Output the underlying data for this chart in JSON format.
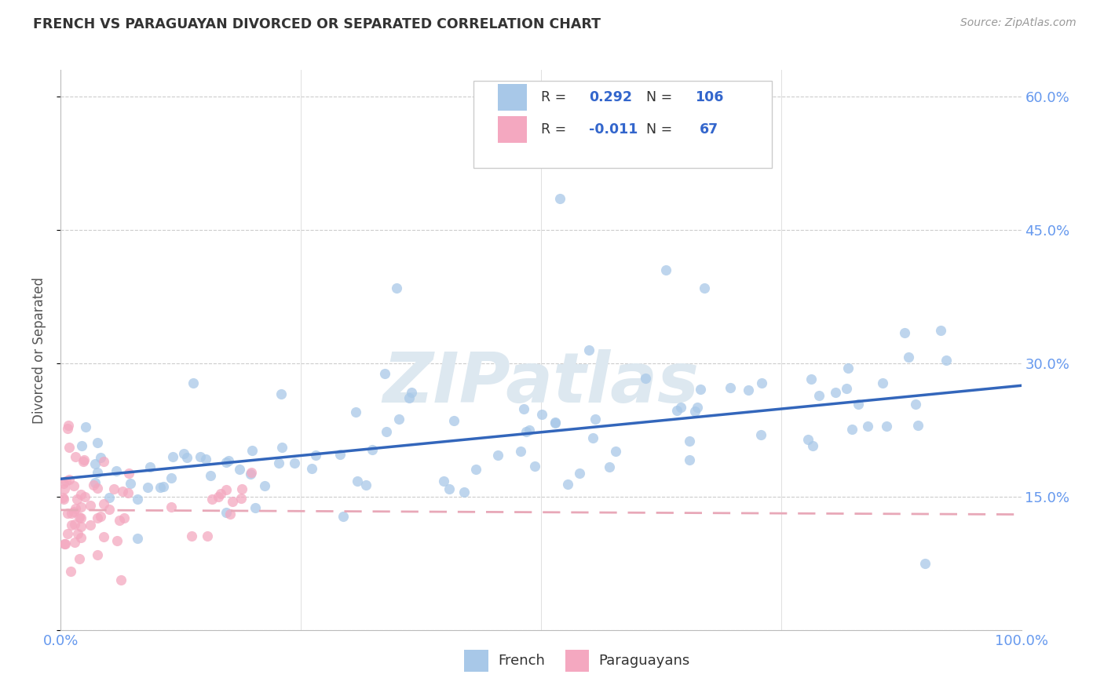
{
  "title": "FRENCH VS PARAGUAYAN DIVORCED OR SEPARATED CORRELATION CHART",
  "source": "Source: ZipAtlas.com",
  "ylabel": "Divorced or Separated",
  "blue_R": "0.292",
  "blue_N": "106",
  "pink_R": "-0.011",
  "pink_N": "67",
  "blue_dot_color": "#a8c8e8",
  "pink_dot_color": "#f4a8c0",
  "blue_line_color": "#3366bb",
  "pink_line_color": "#e8a8b8",
  "axis_color": "#6699ee",
  "title_color": "#333333",
  "source_color": "#999999",
  "grid_color": "#cccccc",
  "legend_text_color": "#333333",
  "legend_value_color": "#3366cc",
  "watermark_color": "#dde8f0",
  "ytick_vals": [
    0.0,
    0.15,
    0.3,
    0.45,
    0.6
  ],
  "ytick_labels": [
    "",
    "15.0%",
    "30.0%",
    "45.0%",
    "60.0%"
  ],
  "xlim": [
    0.0,
    1.0
  ],
  "ylim": [
    0.0,
    0.63
  ],
  "blue_intercept": 0.17,
  "blue_slope": 0.105,
  "pink_intercept": 0.135,
  "pink_slope": -0.005
}
